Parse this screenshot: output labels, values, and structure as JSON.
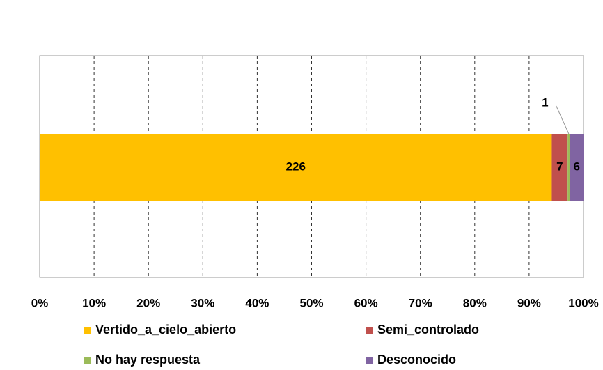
{
  "chart_data": {
    "type": "bar",
    "orientation": "horizontal",
    "stacking": "percent",
    "series": [
      {
        "name": "Vertido_a_cielo_abierto",
        "color": "#ffc000",
        "values": [
          226
        ]
      },
      {
        "name": "Semi_controlado",
        "color": "#c0504d",
        "values": [
          7
        ]
      },
      {
        "name": "No hay respuesta",
        "color": "#9bbb59",
        "values": [
          1
        ]
      },
      {
        "name": "Desconocido",
        "color": "#8064a2",
        "values": [
          6
        ]
      }
    ],
    "xlim": [
      0,
      100
    ],
    "xticks": [
      {
        "value": 0,
        "label": "0%"
      },
      {
        "value": 10,
        "label": "10%"
      },
      {
        "value": 20,
        "label": "20%"
      },
      {
        "value": 30,
        "label": "30%"
      },
      {
        "value": 40,
        "label": "40%"
      },
      {
        "value": 50,
        "label": "50%"
      },
      {
        "value": 60,
        "label": "60%"
      },
      {
        "value": 70,
        "label": "70%"
      },
      {
        "value": 80,
        "label": "80%"
      },
      {
        "value": 90,
        "label": "90%"
      },
      {
        "value": 100,
        "label": "100%"
      }
    ],
    "grid": true,
    "legend": "bottom"
  }
}
